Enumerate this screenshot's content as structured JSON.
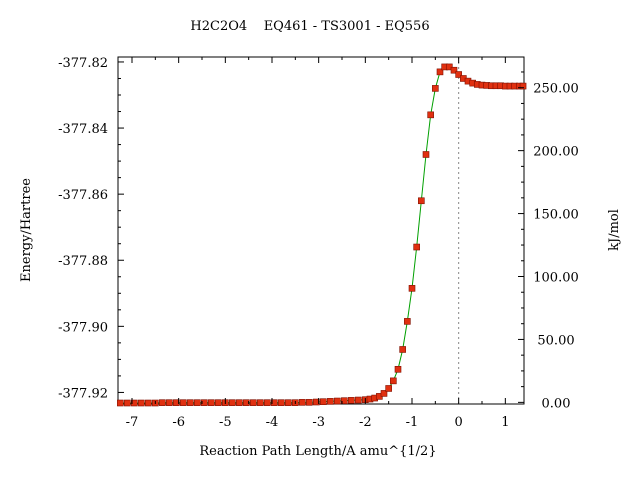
{
  "chart_data": {
    "type": "scatter",
    "title": "H2C2O4    EQ461 - TS3001 - EQ556",
    "xlabel": "Reaction Path Length/A amu^{1/2}",
    "ylabel": "Energy/Hartree",
    "y2label": "kJ/mol",
    "xlim": [
      -7.3,
      1.4
    ],
    "ylim": [
      -377.9235,
      -377.8185
    ],
    "y2lim": [
      -1.3,
      274.4
    ],
    "x_ticks": [
      -7,
      -6,
      -5,
      -4,
      -3,
      -2,
      -1,
      0,
      1
    ],
    "x_tick_labels": [
      "-7",
      "-6",
      "-5",
      "-4",
      "-3",
      "-2",
      "-1",
      "0",
      "1"
    ],
    "y_ticks": [
      -377.82,
      -377.84,
      -377.86,
      -377.88,
      -377.9,
      -377.92
    ],
    "y_tick_labels": [
      "-377.82",
      "-377.84",
      "-377.86",
      "-377.88",
      "-377.90",
      "-377.92"
    ],
    "y2_ticks": [
      0,
      50,
      100,
      150,
      200,
      250
    ],
    "y2_tick_labels": [
      "0.00",
      "50.00",
      "100.00",
      "150.00",
      "200.00",
      "250.00"
    ],
    "ts_marker_x": 0,
    "grid": false,
    "colors": {
      "line": "#00a000",
      "point_fill": "#e03010",
      "point_stroke": "#801000",
      "ts_line": "#888888"
    },
    "series": [
      {
        "x": [
          -7.25,
          -7.1,
          -6.95,
          -6.8,
          -6.65,
          -6.5,
          -6.35,
          -6.2,
          -6.05,
          -5.9,
          -5.75,
          -5.6,
          -5.45,
          -5.3,
          -5.15,
          -5.0,
          -4.85,
          -4.7,
          -4.55,
          -4.4,
          -4.25,
          -4.1,
          -3.95,
          -3.8,
          -3.65,
          -3.5,
          -3.35,
          -3.2,
          -3.05,
          -2.9,
          -2.75,
          -2.6,
          -2.45,
          -2.3,
          -2.15,
          -2.0,
          -1.9,
          -1.8,
          -1.7,
          -1.6,
          -1.5,
          -1.4,
          -1.3,
          -1.2,
          -1.1,
          -1.0,
          -0.9,
          -0.8,
          -0.7,
          -0.6,
          -0.5,
          -0.4,
          -0.3,
          -0.2,
          -0.1,
          0.0,
          0.1,
          0.2,
          0.3,
          0.4,
          0.5,
          0.6,
          0.7,
          0.8,
          0.9,
          1.0,
          1.1,
          1.2,
          1.3,
          1.38
        ],
        "y": [
          -377.9232,
          -377.9232,
          -377.9232,
          -377.9232,
          -377.9232,
          -377.9232,
          -377.9231,
          -377.9231,
          -377.9231,
          -377.9231,
          -377.9231,
          -377.9231,
          -377.9231,
          -377.9231,
          -377.9231,
          -377.9231,
          -377.9231,
          -377.9231,
          -377.9231,
          -377.9231,
          -377.9231,
          -377.9231,
          -377.9231,
          -377.9231,
          -377.9231,
          -377.9231,
          -377.923,
          -377.923,
          -377.9229,
          -377.9228,
          -377.9227,
          -377.9226,
          -377.9225,
          -377.9224,
          -377.9223,
          -377.9222,
          -377.922,
          -377.9217,
          -377.9212,
          -377.9203,
          -377.9188,
          -377.9165,
          -377.913,
          -377.907,
          -377.8985,
          -377.8885,
          -377.876,
          -377.862,
          -377.848,
          -377.836,
          -377.828,
          -377.823,
          -377.8215,
          -377.8215,
          -377.8225,
          -377.8238,
          -377.825,
          -377.8258,
          -377.8264,
          -377.8268,
          -377.827,
          -377.8271,
          -377.8272,
          -377.8272,
          -377.8272,
          -377.8273,
          -377.8273,
          -377.8273,
          -377.8273,
          -377.8273
        ]
      }
    ]
  }
}
